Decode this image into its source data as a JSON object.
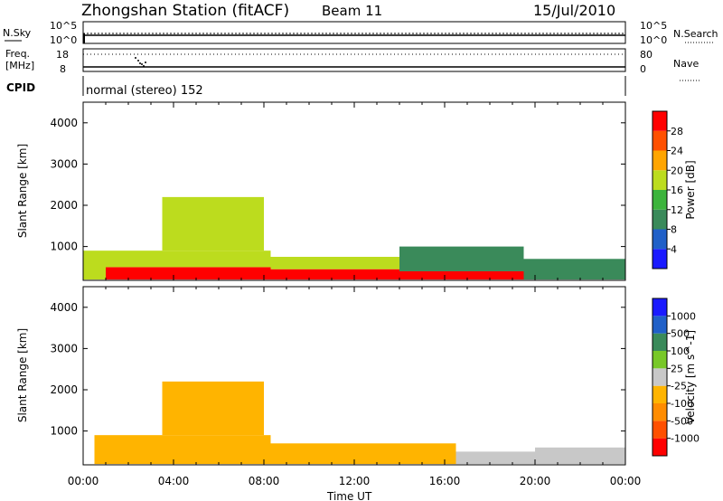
{
  "header": {
    "station": "Zhongshan Station (fitACF)",
    "beam": "Beam 11",
    "date": "15/Jul/2010"
  },
  "status_panels": {
    "nsky_label": "N.Sky",
    "nsky_ticks": [
      "10^5",
      "10^0"
    ],
    "nsearch_label": "N.Search",
    "nsearch_ticks": [
      "10^5",
      "10^0"
    ],
    "freq_label_1": "Freq.",
    "freq_label_2": "[MHz]",
    "freq_ticks": [
      "18",
      "8"
    ],
    "nave_label": "Nave",
    "nave_ticks": [
      "80",
      "0"
    ],
    "cpid_label": "CPID",
    "cpid_text": "normal (stereo) 152"
  },
  "axes": {
    "ylabel": "Slant Range [km]",
    "xlabel": "Time UT",
    "x_ticks": [
      "00:00",
      "04:00",
      "08:00",
      "12:00",
      "16:00",
      "20:00",
      "00:00"
    ],
    "y_ticks": [
      "4000",
      "3000",
      "2000",
      "1000"
    ]
  },
  "colors": {
    "power": [
      "#1a1aff",
      "#2060c8",
      "#3a8a5a",
      "#3cb43c",
      "#bcdc1e",
      "#ffa500",
      "#ff5000",
      "#ff0000"
    ],
    "velocity": [
      "#ff0000",
      "#ff5000",
      "#ff8c00",
      "#ffb400",
      "#c8c8c8",
      "#78c828",
      "#3a8a5a",
      "#2060c8",
      "#1a1aff"
    ]
  },
  "chart_data": [
    {
      "type": "heatmap",
      "title": "Power",
      "ylabel": "Slant Range [km]",
      "xlabel": "",
      "xlim": [
        0,
        24
      ],
      "ylim": [
        180,
        4500
      ],
      "colorbar_label": "Power [dB]",
      "colorbar_ticks": [
        "28",
        "24",
        "20",
        "16",
        "12",
        "8",
        "4"
      ],
      "colorbar_range": [
        0,
        32
      ],
      "regions": [
        {
          "t0": 0.0,
          "t1": 1.0,
          "r0": 200,
          "r1": 900,
          "v": 16
        },
        {
          "t0": 1.0,
          "t1": 8.3,
          "r0": 200,
          "r1": 500,
          "v": 30
        },
        {
          "t0": 1.0,
          "t1": 8.3,
          "r0": 500,
          "r1": 900,
          "v": 18
        },
        {
          "t0": 3.5,
          "t1": 8.0,
          "r0": 900,
          "r1": 2200,
          "v": 16
        },
        {
          "t0": 8.3,
          "t1": 14.0,
          "r0": 200,
          "r1": 450,
          "v": 28
        },
        {
          "t0": 8.3,
          "t1": 14.0,
          "r0": 450,
          "r1": 750,
          "v": 16
        },
        {
          "t0": 14.0,
          "t1": 19.5,
          "r0": 200,
          "r1": 400,
          "v": 30
        },
        {
          "t0": 14.0,
          "t1": 19.5,
          "r0": 400,
          "r1": 1000,
          "v": 8
        },
        {
          "t0": 19.5,
          "t1": 24.0,
          "r0": 200,
          "r1": 700,
          "v": 10
        }
      ]
    },
    {
      "type": "heatmap",
      "title": "Velocity",
      "ylabel": "Slant Range [km]",
      "xlabel": "Time UT",
      "xlim": [
        0,
        24
      ],
      "ylim": [
        180,
        4500
      ],
      "colorbar_label": "Velocity [m s^-1]",
      "colorbar_ticks": [
        "1000",
        "500",
        "100",
        "25",
        "-25",
        "-100",
        "-500",
        "-1000"
      ],
      "colorbar_range": [
        -1500,
        1500
      ],
      "regions": [
        {
          "t0": 0.5,
          "t1": 8.3,
          "r0": 200,
          "r1": 900,
          "v": -300
        },
        {
          "t0": 3.5,
          "t1": 8.0,
          "r0": 900,
          "r1": 2200,
          "v": -400
        },
        {
          "t0": 8.3,
          "t1": 16.5,
          "r0": 200,
          "r1": 700,
          "v": -200
        },
        {
          "t0": 16.5,
          "t1": 20.0,
          "r0": 200,
          "r1": 500,
          "v": 0
        },
        {
          "t0": 20.0,
          "t1": 24.0,
          "r0": 200,
          "r1": 600,
          "v": 50
        }
      ]
    }
  ]
}
